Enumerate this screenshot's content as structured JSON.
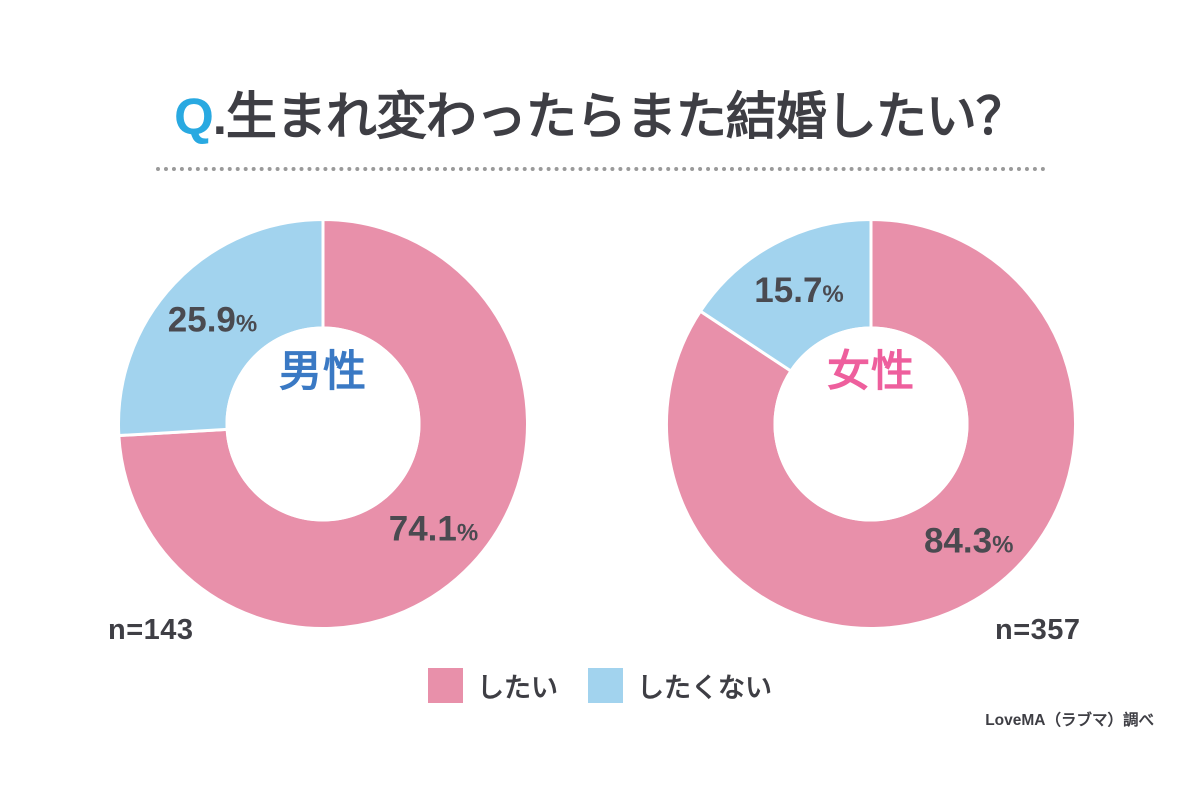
{
  "title": {
    "accent": "Q",
    "rest": ".生まれ変わったらまた結婚したい？"
  },
  "colors": {
    "want_pink": "#e890aa",
    "not_want_blue": "#a2d3ee",
    "title_accent_blue": "#29a9e1",
    "title_text": "#3e3e44",
    "percent_text": "#4a4a50",
    "male_center_blue": "#3a79c4",
    "female_center_pink": "#ee5f9d"
  },
  "avatar_colors": {
    "skin": "#fcdcbe",
    "ink": "#433d39",
    "boy_hair": "#5b463c",
    "boy_jacket": "#3a7589",
    "boy_shirt": "#f5eedd",
    "girl_hair": "#5f4936",
    "girl_sweater": "#c4534e",
    "girl_panel": "#c6c0ba",
    "girl_buttons": "#4a4a4a"
  },
  "chart_data": [
    {
      "type": "pie",
      "variant": "donut",
      "start_angle": "top",
      "direction": "clockwise",
      "center_label": "男性",
      "center_label_color": "#3a79c4",
      "avatar": "boy-avatar",
      "n": 143,
      "n_label": "n=143",
      "labels": [
        "したい",
        "したくない"
      ],
      "values": [
        74.1,
        25.9
      ],
      "unit": "%",
      "colors": [
        "#e890aa",
        "#a2d3ee"
      ],
      "slice_keys": [
        "want",
        "not-want"
      ]
    },
    {
      "type": "pie",
      "variant": "donut",
      "start_angle": "top",
      "direction": "clockwise",
      "center_label": "女性",
      "center_label_color": "#ee5f9d",
      "avatar": "girl-avatar",
      "n": 357,
      "n_label": "n=357",
      "labels": [
        "したい",
        "したくない"
      ],
      "values": [
        84.3,
        15.7
      ],
      "unit": "%",
      "colors": [
        "#e890aa",
        "#a2d3ee"
      ],
      "slice_keys": [
        "want",
        "not-want"
      ]
    }
  ],
  "legend": {
    "items": [
      {
        "label": "したい",
        "color": "#e890aa"
      },
      {
        "label": "したくない",
        "color": "#a2d3ee"
      }
    ]
  },
  "source": "LoveMA（ラブマ）調べ"
}
